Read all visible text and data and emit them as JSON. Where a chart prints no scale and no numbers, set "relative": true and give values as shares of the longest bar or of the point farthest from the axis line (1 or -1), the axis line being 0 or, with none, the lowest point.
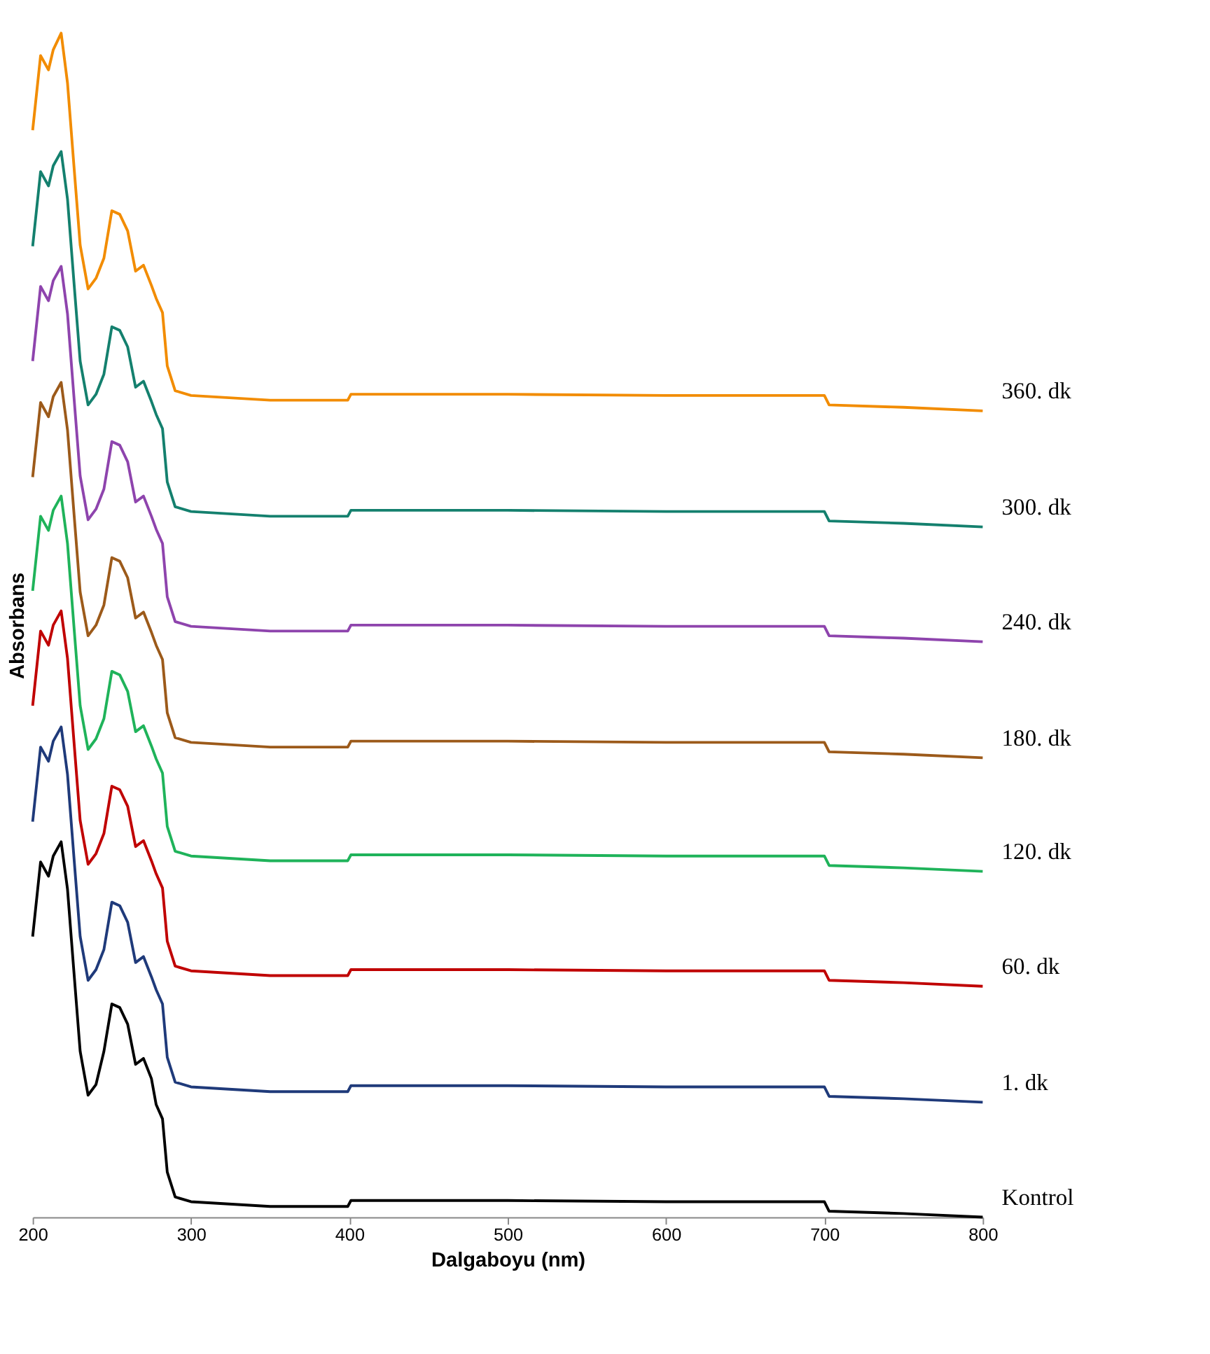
{
  "chart_data": {
    "type": "line",
    "relative": true,
    "xlabel": "Dalgaboyu (nm)",
    "ylabel": "Absorbans",
    "x": [
      200,
      205,
      210,
      213,
      218,
      222,
      226,
      230,
      235,
      240,
      245,
      250,
      255,
      260,
      265,
      270,
      275,
      278,
      282,
      285,
      290,
      300,
      350,
      399,
      401,
      500,
      600,
      700,
      703,
      750,
      800
    ],
    "xlim": [
      200,
      800
    ],
    "xticks": [
      200,
      300,
      400,
      500,
      600,
      700,
      800
    ],
    "grid": false,
    "legend": false,
    "marker": "none",
    "line_style": "solid",
    "series": [
      {
        "name": "Kontrol",
        "color": "#000000",
        "values": [
          0.237,
          0.3,
          0.288,
          0.305,
          0.317,
          0.277,
          0.208,
          0.14,
          0.103,
          0.112,
          0.14,
          0.18,
          0.177,
          0.163,
          0.129,
          0.134,
          0.117,
          0.095,
          0.083,
          0.038,
          0.017,
          0.013,
          0.009,
          0.009,
          0.014,
          0.014,
          0.013,
          0.013,
          0.005,
          0.003,
          0.0
        ]
      },
      {
        "name": "1. dk",
        "color": "#1f3a7a",
        "values": [
          0.334,
          0.397,
          0.385,
          0.402,
          0.414,
          0.374,
          0.305,
          0.237,
          0.2,
          0.209,
          0.226,
          0.266,
          0.263,
          0.249,
          0.215,
          0.22,
          0.203,
          0.192,
          0.18,
          0.135,
          0.114,
          0.11,
          0.106,
          0.106,
          0.111,
          0.111,
          0.11,
          0.11,
          0.102,
          0.1,
          0.097
        ]
      },
      {
        "name": "60. dk",
        "color": "#c00000",
        "values": [
          0.432,
          0.495,
          0.483,
          0.5,
          0.512,
          0.472,
          0.403,
          0.335,
          0.298,
          0.307,
          0.324,
          0.364,
          0.361,
          0.347,
          0.313,
          0.318,
          0.301,
          0.29,
          0.278,
          0.233,
          0.212,
          0.208,
          0.204,
          0.204,
          0.209,
          0.209,
          0.208,
          0.208,
          0.2,
          0.198,
          0.195
        ]
      },
      {
        "name": "120. dk",
        "color": "#1fb35a",
        "values": [
          0.529,
          0.592,
          0.58,
          0.597,
          0.609,
          0.569,
          0.5,
          0.432,
          0.395,
          0.404,
          0.421,
          0.461,
          0.458,
          0.444,
          0.41,
          0.415,
          0.398,
          0.387,
          0.375,
          0.33,
          0.309,
          0.305,
          0.301,
          0.301,
          0.306,
          0.306,
          0.305,
          0.305,
          0.297,
          0.295,
          0.292
        ]
      },
      {
        "name": "180. dk",
        "color": "#9c5a1a",
        "values": [
          0.625,
          0.688,
          0.676,
          0.693,
          0.705,
          0.665,
          0.596,
          0.528,
          0.491,
          0.5,
          0.517,
          0.557,
          0.554,
          0.54,
          0.506,
          0.511,
          0.494,
          0.483,
          0.471,
          0.426,
          0.405,
          0.401,
          0.397,
          0.397,
          0.402,
          0.402,
          0.401,
          0.401,
          0.393,
          0.391,
          0.388
        ]
      },
      {
        "name": "240. dk",
        "color": "#8e44ad",
        "values": [
          0.723,
          0.786,
          0.774,
          0.791,
          0.803,
          0.763,
          0.694,
          0.626,
          0.589,
          0.598,
          0.615,
          0.655,
          0.652,
          0.638,
          0.604,
          0.609,
          0.592,
          0.581,
          0.569,
          0.524,
          0.503,
          0.499,
          0.495,
          0.495,
          0.5,
          0.5,
          0.499,
          0.499,
          0.491,
          0.489,
          0.486
        ]
      },
      {
        "name": "300. dk",
        "color": "#14806e",
        "values": [
          0.82,
          0.883,
          0.871,
          0.888,
          0.9,
          0.86,
          0.791,
          0.723,
          0.686,
          0.695,
          0.712,
          0.752,
          0.749,
          0.735,
          0.701,
          0.706,
          0.689,
          0.678,
          0.666,
          0.621,
          0.6,
          0.596,
          0.592,
          0.592,
          0.597,
          0.597,
          0.596,
          0.596,
          0.588,
          0.586,
          0.583
        ]
      },
      {
        "name": "360. dk",
        "color": "#f28c00",
        "values": [
          0.918,
          0.981,
          0.969,
          0.986,
          1.0,
          0.958,
          0.889,
          0.821,
          0.784,
          0.793,
          0.81,
          0.85,
          0.847,
          0.833,
          0.799,
          0.804,
          0.787,
          0.776,
          0.764,
          0.719,
          0.698,
          0.694,
          0.69,
          0.69,
          0.695,
          0.695,
          0.694,
          0.694,
          0.686,
          0.684,
          0.681
        ]
      }
    ]
  }
}
